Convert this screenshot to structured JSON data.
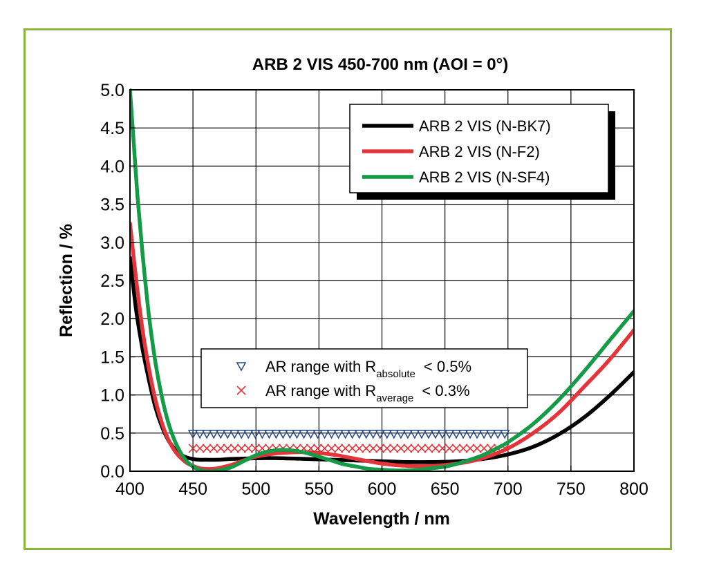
{
  "chart_data": {
    "type": "line",
    "title": "ARB 2 VIS 450-700 nm (AOI = 0°)",
    "xlabel": "Wavelength / nm",
    "ylabel": "Reflection / %",
    "xlim": [
      400,
      800
    ],
    "ylim": [
      0,
      5
    ],
    "xticks": [
      "400",
      "450",
      "500",
      "550",
      "600",
      "650",
      "700",
      "750",
      "800"
    ],
    "yticks": [
      "0.0",
      "0.5",
      "1.0",
      "1.5",
      "2.0",
      "2.5",
      "3.0",
      "3.5",
      "4.0",
      "4.5",
      "5.0"
    ],
    "grid": true,
    "legend_position": "top-right",
    "series": [
      {
        "name": "ARB 2 VIS (N-BK7)",
        "color": "#000000",
        "x": [
          400,
          405,
          410,
          415,
          420,
          425,
          430,
          435,
          440,
          445,
          450,
          455,
          460,
          470,
          480,
          500,
          520,
          540,
          560,
          580,
          600,
          620,
          640,
          660,
          680,
          700,
          720,
          740,
          760,
          780,
          800
        ],
        "y": [
          2.8,
          2.1,
          1.6,
          1.2,
          0.85,
          0.6,
          0.42,
          0.3,
          0.22,
          0.18,
          0.16,
          0.15,
          0.15,
          0.15,
          0.16,
          0.17,
          0.17,
          0.16,
          0.15,
          0.14,
          0.13,
          0.12,
          0.12,
          0.13,
          0.16,
          0.22,
          0.32,
          0.48,
          0.7,
          0.98,
          1.3
        ]
      },
      {
        "name": "ARB 2 VIS (N-F2)",
        "color": "#e5333a",
        "x": [
          400,
          405,
          410,
          415,
          420,
          425,
          430,
          435,
          440,
          445,
          450,
          455,
          460,
          465,
          470,
          480,
          490,
          500,
          510,
          520,
          540,
          560,
          580,
          600,
          620,
          640,
          660,
          680,
          700,
          720,
          740,
          760,
          780,
          800
        ],
        "y": [
          3.25,
          2.5,
          1.85,
          1.35,
          0.95,
          0.65,
          0.43,
          0.28,
          0.18,
          0.11,
          0.07,
          0.04,
          0.03,
          0.03,
          0.04,
          0.08,
          0.14,
          0.19,
          0.22,
          0.24,
          0.25,
          0.22,
          0.16,
          0.1,
          0.07,
          0.07,
          0.1,
          0.17,
          0.3,
          0.5,
          0.76,
          1.1,
          1.45,
          1.85
        ]
      },
      {
        "name": "ARB 2 VIS (N-SF4)",
        "color": "#159a48",
        "x": [
          400,
          403,
          406,
          410,
          415,
          420,
          425,
          430,
          435,
          440,
          445,
          450,
          455,
          460,
          465,
          470,
          480,
          490,
          500,
          510,
          520,
          530,
          540,
          550,
          560,
          570,
          580,
          590,
          600,
          610,
          620,
          630,
          640,
          650,
          660,
          670,
          680,
          690,
          700,
          720,
          740,
          760,
          780,
          800
        ],
        "y": [
          5.0,
          4.3,
          3.6,
          2.85,
          2.05,
          1.45,
          1.0,
          0.66,
          0.42,
          0.25,
          0.13,
          0.06,
          0.02,
          0.0,
          0.0,
          0.01,
          0.05,
          0.13,
          0.21,
          0.26,
          0.28,
          0.27,
          0.24,
          0.19,
          0.14,
          0.09,
          0.06,
          0.03,
          0.02,
          0.01,
          0.01,
          0.02,
          0.04,
          0.06,
          0.1,
          0.15,
          0.21,
          0.29,
          0.38,
          0.62,
          0.93,
          1.3,
          1.7,
          2.1
        ]
      }
    ],
    "markers": [
      {
        "name": "AR range with R",
        "subscript": "absolute",
        "suffix": "< 0.5%",
        "symbol": "triangle-down",
        "color": "#2d4f8e",
        "y": 0.5,
        "x_from": 450,
        "x_to": 700
      },
      {
        "name": "AR range with R",
        "subscript": "average",
        "suffix": "< 0.3%",
        "symbol": "cross",
        "color": "#e5333a",
        "y": 0.3,
        "x_from": 450,
        "x_to": 700
      }
    ]
  }
}
